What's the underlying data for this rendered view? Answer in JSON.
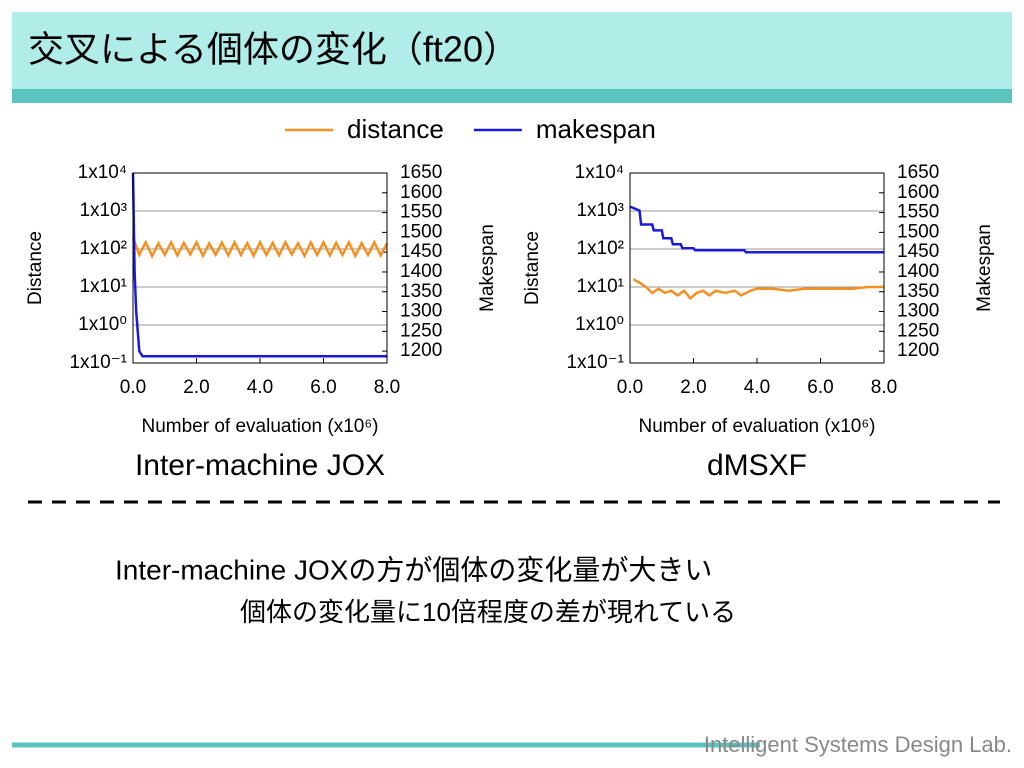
{
  "slide": {
    "title": "交叉による個体の変化（ft20）",
    "body": [
      "Inter-machine JOXの方が個体の変化量が大きい",
      "個体の変化量に10倍程度の差が現れている"
    ],
    "footer": "Intelligent Systems Design Lab."
  },
  "chart_data": [
    {
      "type": "line",
      "title": "Inter-machine JOX",
      "legend": "top",
      "xlabel": "Number of evaluation (x10⁶)",
      "ylabel": "Distance",
      "y2label": "Makespan",
      "xlim": [
        0,
        8
      ],
      "xticks": [
        {
          "value": 0,
          "label": "0.0"
        },
        {
          "value": 2,
          "label": "2.0"
        },
        {
          "value": 4,
          "label": "4.0"
        },
        {
          "value": 6,
          "label": "6.0"
        },
        {
          "value": 8,
          "label": "8.0"
        }
      ],
      "ylim": [
        0.1,
        10000
      ],
      "ylog": true,
      "yticks": [
        {
          "value": 0.1,
          "label": "1x10⁻¹"
        },
        {
          "value": 1,
          "label": "1x10⁰"
        },
        {
          "value": 10,
          "label": "1x10¹"
        },
        {
          "value": 100,
          "label": "1x10²"
        },
        {
          "value": 1000,
          "label": "1x10³"
        },
        {
          "value": 10000,
          "label": "1x10⁴"
        }
      ],
      "y2lim": [
        1170,
        1650
      ],
      "y2ticks": [
        1200,
        1250,
        1300,
        1350,
        1400,
        1450,
        1500,
        1550,
        1600,
        1650
      ],
      "grid": true,
      "series": [
        {
          "name": "distance",
          "color": "#f39020",
          "x": [
            0,
            0.2,
            0.4,
            0.6,
            0.8,
            1.0,
            1.2,
            1.4,
            1.6,
            1.8,
            2.0,
            2.2,
            2.4,
            2.6,
            2.8,
            3.0,
            3.2,
            3.4,
            3.6,
            3.8,
            4.0,
            4.2,
            4.4,
            4.6,
            4.8,
            5.0,
            5.2,
            5.4,
            5.6,
            5.8,
            6.0,
            6.2,
            6.4,
            6.6,
            6.8,
            7.0,
            7.2,
            7.4,
            7.6,
            7.8,
            8.0
          ],
          "values": [
            200,
            70,
            150,
            65,
            140,
            70,
            150,
            68,
            145,
            72,
            150,
            66,
            140,
            70,
            148,
            68,
            150,
            70,
            142,
            66,
            150,
            70,
            145,
            68,
            150,
            72,
            140,
            66,
            148,
            70,
            150,
            68,
            145,
            70,
            150,
            66,
            142,
            70,
            150,
            68,
            140
          ]
        },
        {
          "name": "makespan",
          "color": "#1a1adc",
          "axis": "y2",
          "x": [
            0,
            0.05,
            0.1,
            0.2,
            0.3,
            8.0
          ],
          "values": [
            1650,
            1400,
            1300,
            1200,
            1187,
            1187
          ]
        }
      ]
    },
    {
      "type": "line",
      "title": "dMSXF",
      "xlabel": "Number of evaluation (x10⁶)",
      "ylabel": "Distance",
      "y2label": "Makespan",
      "xlim": [
        0,
        8
      ],
      "xticks": [
        {
          "value": 0,
          "label": "0.0"
        },
        {
          "value": 2,
          "label": "2.0"
        },
        {
          "value": 4,
          "label": "4.0"
        },
        {
          "value": 6,
          "label": "6.0"
        },
        {
          "value": 8,
          "label": "8.0"
        }
      ],
      "ylim": [
        0.1,
        10000
      ],
      "ylog": true,
      "yticks": [
        {
          "value": 0.1,
          "label": "1x10⁻¹"
        },
        {
          "value": 1,
          "label": "1x10⁰"
        },
        {
          "value": 10,
          "label": "1x10¹"
        },
        {
          "value": 100,
          "label": "1x10²"
        },
        {
          "value": 1000,
          "label": "1x10³"
        },
        {
          "value": 10000,
          "label": "1x10⁴"
        }
      ],
      "y2lim": [
        1170,
        1650
      ],
      "y2ticks": [
        1200,
        1250,
        1300,
        1350,
        1400,
        1450,
        1500,
        1550,
        1600,
        1650
      ],
      "grid": true,
      "series": [
        {
          "color": "#f39020",
          "x": [
            0.1,
            0.3,
            0.5,
            0.7,
            0.9,
            1.1,
            1.3,
            1.5,
            1.7,
            1.9,
            2.1,
            2.3,
            2.5,
            2.7,
            3.0,
            3.3,
            3.5,
            3.8,
            4.0,
            4.5,
            5.0,
            5.5,
            6.0,
            6.5,
            7.0,
            7.5,
            8.0
          ],
          "values": [
            16,
            13,
            10,
            7,
            9,
            7,
            8,
            6,
            8,
            5,
            7,
            8,
            6,
            8,
            7,
            8,
            6,
            8,
            9,
            9,
            8,
            9,
            9,
            9,
            9,
            10,
            10
          ]
        },
        {
          "color": "#1a1adc",
          "axis": "y2",
          "x": [
            0,
            0.3,
            0.35,
            0.7,
            0.75,
            1.0,
            1.05,
            1.3,
            1.35,
            1.6,
            1.65,
            2.0,
            2.05,
            3.6,
            3.65,
            8.0
          ],
          "values": [
            1565,
            1555,
            1520,
            1520,
            1505,
            1505,
            1485,
            1485,
            1470,
            1470,
            1460,
            1460,
            1455,
            1455,
            1450,
            1450
          ]
        }
      ]
    }
  ]
}
